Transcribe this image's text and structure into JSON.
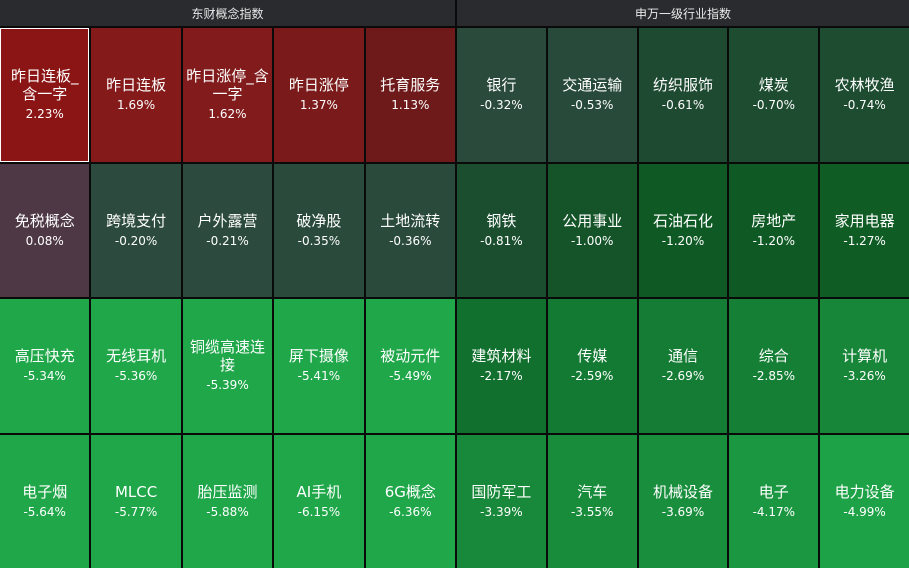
{
  "left_panel": {
    "title": "东财概念指数",
    "tiles": [
      {
        "name": "昨日连板_含一字",
        "change": "2.23%",
        "color": "#8b1515",
        "selected": true
      },
      {
        "name": "昨日连板",
        "change": "1.69%",
        "color": "#841a1a"
      },
      {
        "name": "昨日涨停_含一字",
        "change": "1.62%",
        "color": "#821b1b"
      },
      {
        "name": "昨日涨停",
        "change": "1.37%",
        "color": "#7a1a1a"
      },
      {
        "name": "托育服务",
        "change": "1.13%",
        "color": "#6e1a1a"
      },
      {
        "name": "免税概念",
        "change": "0.08%",
        "color": "#4e3845"
      },
      {
        "name": "跨境支付",
        "change": "-0.20%",
        "color": "#2c4a3e"
      },
      {
        "name": "户外露营",
        "change": "-0.21%",
        "color": "#2c4a3e"
      },
      {
        "name": "破净股",
        "change": "-0.35%",
        "color": "#2a4a3c"
      },
      {
        "name": "土地流转",
        "change": "-0.36%",
        "color": "#2a4a3c"
      },
      {
        "name": "高压快充",
        "change": "-5.34%",
        "color": "#1fa74a"
      },
      {
        "name": "无线耳机",
        "change": "-5.36%",
        "color": "#1fa74a"
      },
      {
        "name": "铜缆高速连接",
        "change": "-5.39%",
        "color": "#1fa74a"
      },
      {
        "name": "屏下摄像",
        "change": "-5.41%",
        "color": "#1fa74a"
      },
      {
        "name": "被动元件",
        "change": "-5.49%",
        "color": "#1fa74a"
      },
      {
        "name": "电子烟",
        "change": "-5.64%",
        "color": "#1fa74a"
      },
      {
        "name": "MLCC",
        "change": "-5.77%",
        "color": "#1fa74a"
      },
      {
        "name": "胎压监测",
        "change": "-5.88%",
        "color": "#1fa74a"
      },
      {
        "name": "AI手机",
        "change": "-6.15%",
        "color": "#1fa74a"
      },
      {
        "name": "6G概念",
        "change": "-6.36%",
        "color": "#1fa74a"
      }
    ]
  },
  "right_panel": {
    "title": "申万一级行业指数",
    "tiles": [
      {
        "name": "银行",
        "change": "-0.32%",
        "color": "#2a4a3c"
      },
      {
        "name": "交通运输",
        "change": "-0.53%",
        "color": "#284a3a"
      },
      {
        "name": "纺织服饰",
        "change": "-0.61%",
        "color": "#1f4a32"
      },
      {
        "name": "煤炭",
        "change": "-0.70%",
        "color": "#1d4c30"
      },
      {
        "name": "农林牧渔",
        "change": "-0.74%",
        "color": "#1d4c30"
      },
      {
        "name": "钢铁",
        "change": "-0.81%",
        "color": "#1a4e2e"
      },
      {
        "name": "公用事业",
        "change": "-1.00%",
        "color": "#145428"
      },
      {
        "name": "石油石化",
        "change": "-1.20%",
        "color": "#0f5a24"
      },
      {
        "name": "房地产",
        "change": "-1.20%",
        "color": "#0f5a24"
      },
      {
        "name": "家用电器",
        "change": "-1.27%",
        "color": "#0f5c24"
      },
      {
        "name": "建筑材料",
        "change": "-2.17%",
        "color": "#11702e"
      },
      {
        "name": "传媒",
        "change": "-2.59%",
        "color": "#137a33"
      },
      {
        "name": "通信",
        "change": "-2.69%",
        "color": "#147c34"
      },
      {
        "name": "综合",
        "change": "-2.85%",
        "color": "#157f36"
      },
      {
        "name": "计算机",
        "change": "-3.26%",
        "color": "#178639"
      },
      {
        "name": "国防军工",
        "change": "-3.39%",
        "color": "#18883a"
      },
      {
        "name": "汽车",
        "change": "-3.55%",
        "color": "#198c3c"
      },
      {
        "name": "机械设备",
        "change": "-3.69%",
        "color": "#198e3d"
      },
      {
        "name": "电子",
        "change": "-4.17%",
        "color": "#1b9641"
      },
      {
        "name": "电力设备",
        "change": "-4.99%",
        "color": "#1ea247"
      }
    ]
  }
}
